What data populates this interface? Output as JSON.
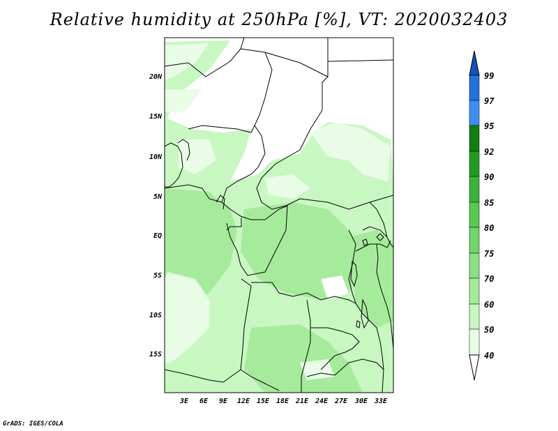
{
  "title": "Relative humidity at 250hPa [%], VT: 2020032403",
  "credit": "GrADS: IGES/COLA",
  "map": {
    "lat_labels": [
      "20N",
      "15N",
      "10N",
      "5N",
      "EQ",
      "5S",
      "10S",
      "15S"
    ],
    "lon_labels": [
      "3E",
      "6E",
      "9E",
      "12E",
      "15E",
      "18E",
      "21E",
      "24E",
      "27E",
      "30E",
      "33E"
    ]
  },
  "colorbar": {
    "labels": [
      "40",
      "50",
      "60",
      "70",
      "75",
      "80",
      "85",
      "90",
      "92",
      "95",
      "97",
      "99"
    ],
    "colors": [
      "#ffffff",
      "#e8fce6",
      "#c8f7c2",
      "#a6eb9c",
      "#8ce083",
      "#72d46a",
      "#58c852",
      "#3cb23a",
      "#239b23",
      "#107e10",
      "#3d8ef0",
      "#2172dc",
      "#1451b8"
    ]
  }
}
